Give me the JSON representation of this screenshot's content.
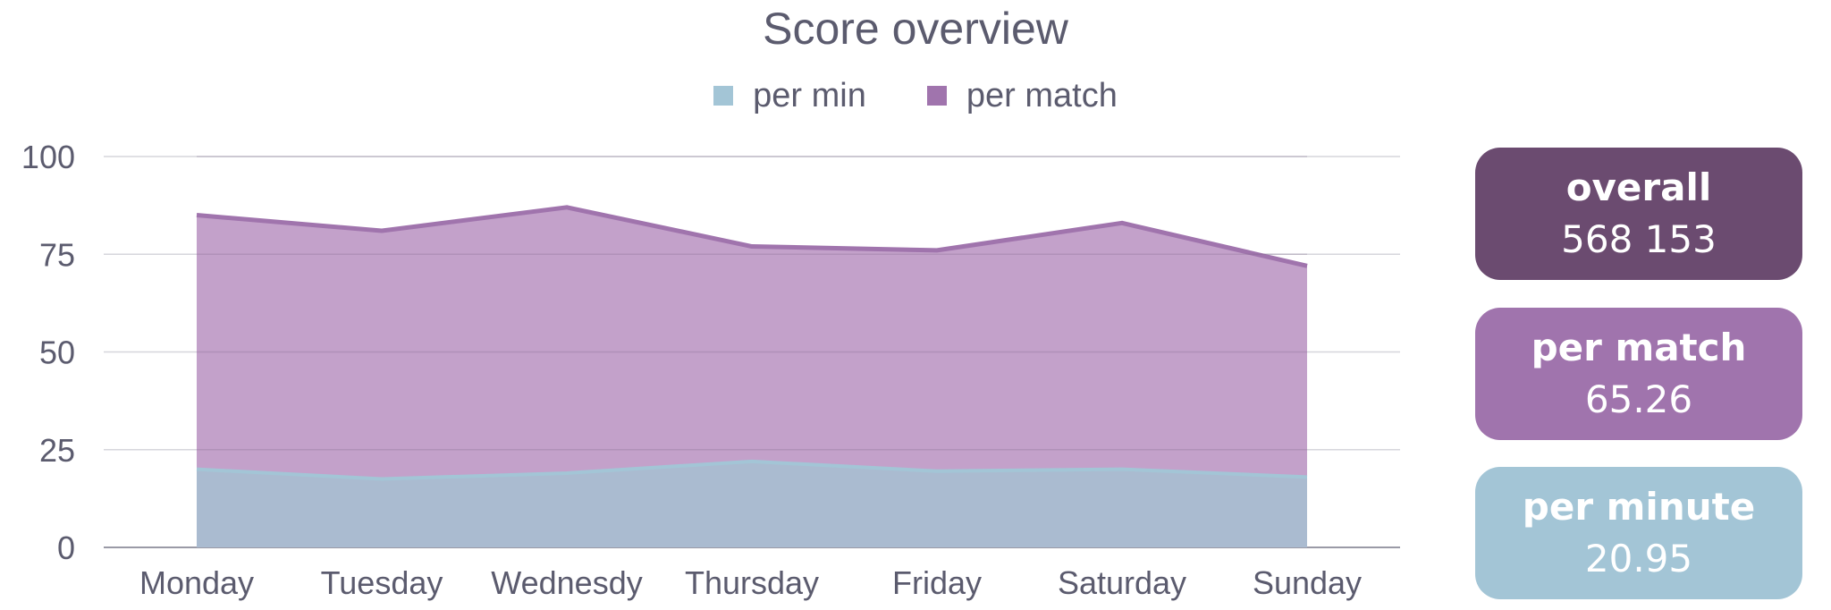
{
  "chart_data": {
    "type": "area",
    "stacked": true,
    "title": "Score overview",
    "categories": [
      "Monday",
      "Tuesday",
      "Wednesdy",
      "Thursday",
      "Friday",
      "Saturday",
      "Sunday"
    ],
    "series": [
      {
        "name": "per min",
        "values": [
          20,
          17.5,
          19,
          22,
          19.5,
          20,
          18
        ],
        "color": "#a3c5d6"
      },
      {
        "name": "per match",
        "values": [
          85,
          81,
          87,
          77,
          76,
          83,
          72
        ],
        "color": "#a074ad"
      }
    ],
    "yticks": [
      "0",
      "25",
      "50",
      "75",
      "100"
    ],
    "ylim": [
      0,
      100
    ],
    "grid": true,
    "legend_position": "top"
  },
  "stats": {
    "overall": {
      "label": "overall",
      "value": "568 153",
      "color": "#6b4b70"
    },
    "per_match": {
      "label": "per match",
      "value": "65.26",
      "color": "#a074ad"
    },
    "per_minute": {
      "label": "per minute",
      "value": "20.95",
      "color": "#a3c5d6"
    }
  }
}
